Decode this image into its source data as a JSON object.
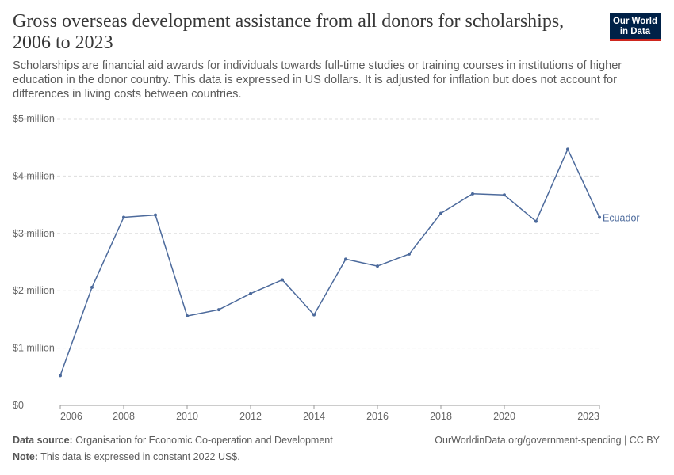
{
  "header": {
    "title": "Gross overseas development assistance from all donors for scholarships, 2006 to 2023",
    "subtitle": "Scholarships are financial aid awards for individuals towards full-time studies or training courses in institutions of higher education in the donor country. This data is expressed in US dollars. It is adjusted for inflation but does not account for differences in living costs between countries."
  },
  "logo": {
    "line1": "Our World",
    "line2": "in Data"
  },
  "footer": {
    "source_label": "Data source:",
    "source_text": "Organisation for Economic Co-operation and Development",
    "note_label": "Note:",
    "note_text": "This data is expressed in constant 2022 US$.",
    "right_text": "OurWorldinData.org/government-spending | CC BY"
  },
  "chart_data": {
    "type": "line",
    "title": "Gross overseas development assistance from all donors for scholarships, 2006 to 2023",
    "xlabel": "",
    "ylabel": "",
    "xlim": [
      2006,
      2023
    ],
    "ylim": [
      0,
      5000000
    ],
    "grid": true,
    "x_ticks": [
      2006,
      2008,
      2010,
      2012,
      2014,
      2016,
      2018,
      2020,
      2023
    ],
    "y_ticks": [
      {
        "value": 0,
        "label": "$0"
      },
      {
        "value": 1000000,
        "label": "$1 million"
      },
      {
        "value": 2000000,
        "label": "$2 million"
      },
      {
        "value": 3000000,
        "label": "$3 million"
      },
      {
        "value": 4000000,
        "label": "$4 million"
      },
      {
        "value": 5000000,
        "label": "$5 million"
      }
    ],
    "line_color": "#4c6a9c",
    "series": [
      {
        "name": "Ecuador",
        "x": [
          2006,
          2007,
          2008,
          2009,
          2010,
          2011,
          2012,
          2013,
          2014,
          2015,
          2016,
          2017,
          2018,
          2019,
          2020,
          2021,
          2022,
          2023
        ],
        "values": [
          520000,
          2060000,
          3280000,
          3320000,
          1560000,
          1670000,
          1950000,
          2190000,
          1580000,
          2550000,
          2430000,
          2640000,
          3350000,
          3690000,
          3670000,
          3210000,
          4470000,
          3280000
        ]
      }
    ]
  }
}
